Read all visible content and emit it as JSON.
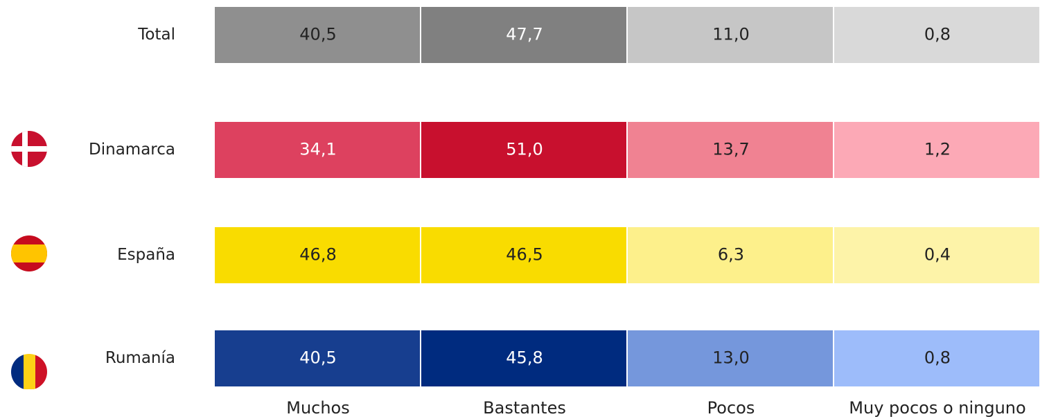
{
  "table": {
    "columns": [
      "Muchos",
      "Bastantes",
      "Pocos",
      "Muy pocos o ninguno"
    ],
    "rows": [
      {
        "label": "Total",
        "cells": [
          "40,5",
          "47,7",
          "11,0",
          "0,8"
        ],
        "colors": [
          "#8f8f8f",
          "#808080",
          "#c6c6c6",
          "#d9d9d9"
        ]
      },
      {
        "label": "Dinamarca",
        "cells": [
          "34,1",
          "51,0",
          "13,7",
          "1,2"
        ],
        "colors": [
          "#dd415f",
          "#c8102e",
          "#f08292",
          "#fca9b6"
        ]
      },
      {
        "label": "España",
        "cells": [
          "46,8",
          "46,5",
          "6,3",
          "0,4"
        ],
        "colors": [
          "#f9dc00",
          "#f9dc00",
          "#fdf08b",
          "#fdf3a8"
        ]
      },
      {
        "label": "Rumanía",
        "cells": [
          "40,5",
          "45,8",
          "13,0",
          "0,8"
        ],
        "colors": [
          "#173e8f",
          "#002b7f",
          "#7597dc",
          "#9dbcfa"
        ]
      }
    ]
  }
}
